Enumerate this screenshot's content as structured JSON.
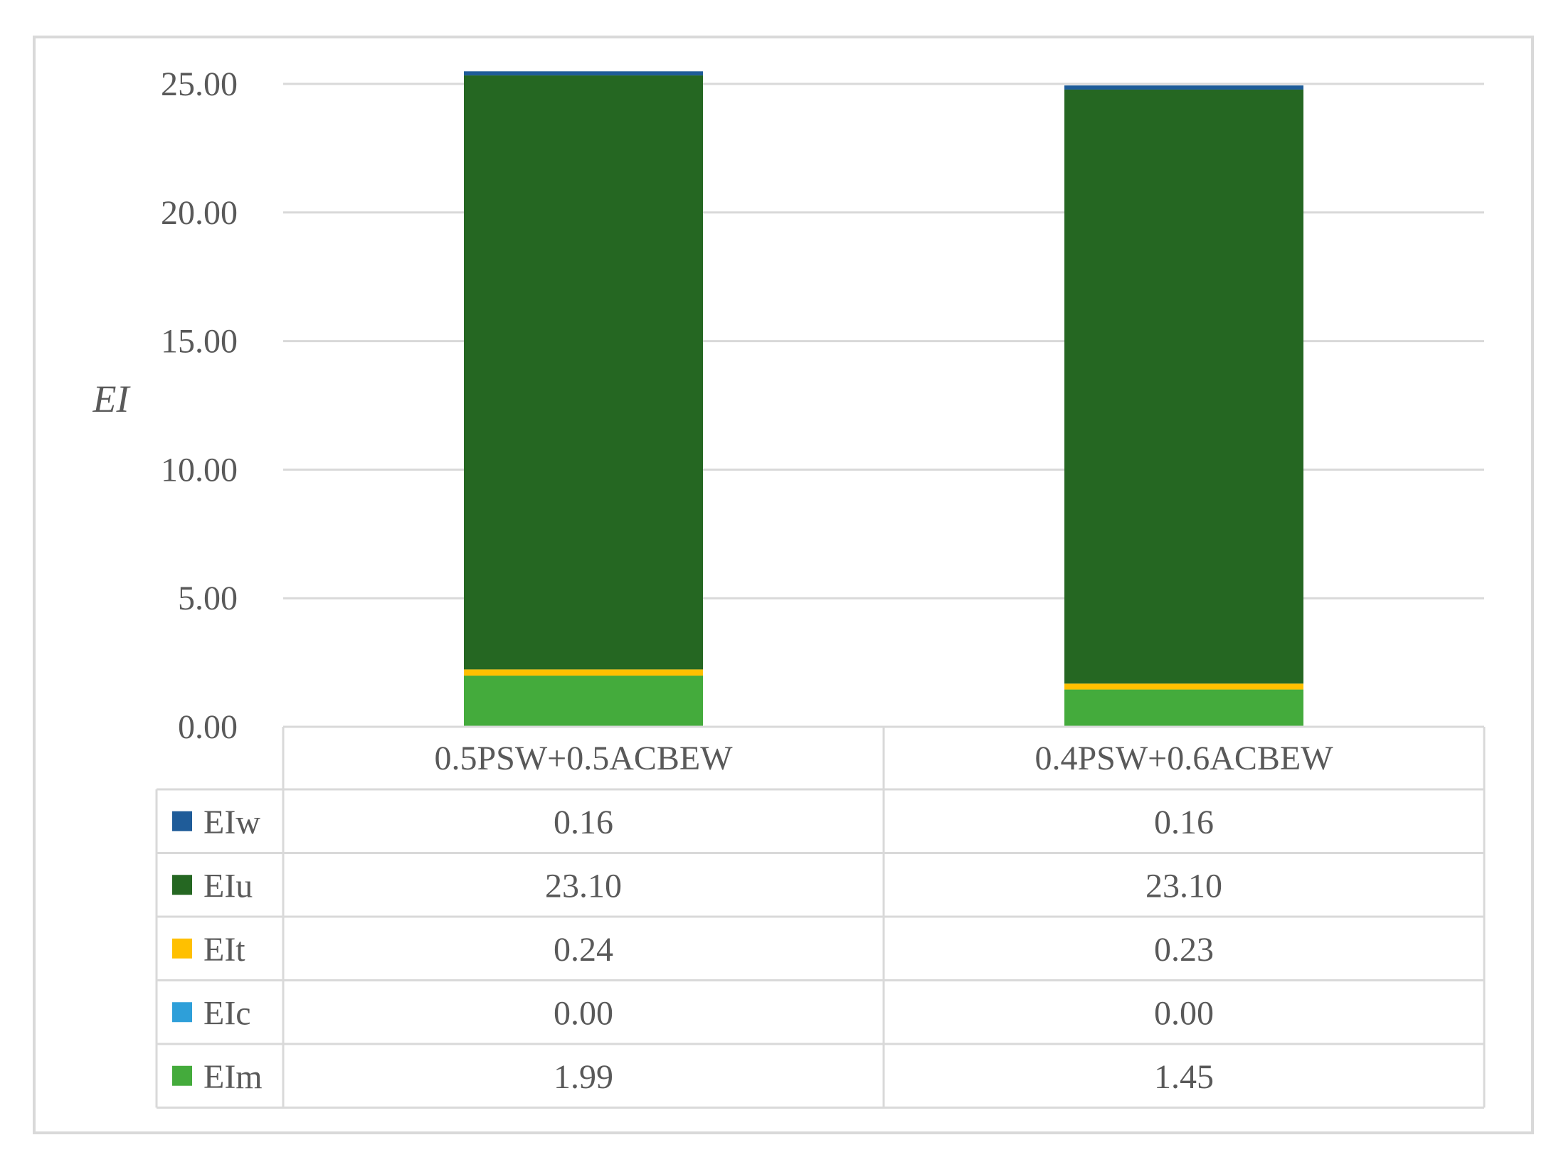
{
  "chart_data": {
    "type": "bar",
    "stacked": true,
    "ylabel": "EI",
    "ylim": [
      0,
      25
    ],
    "yticks": [
      "0.00",
      "5.00",
      "10.00",
      "15.00",
      "20.00",
      "25.00"
    ],
    "grid": true,
    "legend": "data-table",
    "categories": [
      "0.5PSW+0.5ACBEW",
      "0.4PSW+0.6ACBEW"
    ],
    "series": [
      {
        "name": "EIw",
        "color": "#1f5c99",
        "values": [
          0.16,
          0.16
        ],
        "labels": [
          "0.16",
          "0.16"
        ]
      },
      {
        "name": "EIu",
        "color": "#256722",
        "values": [
          23.1,
          23.1
        ],
        "labels": [
          "23.10",
          "23.10"
        ]
      },
      {
        "name": "EIt",
        "color": "#ffc000",
        "values": [
          0.24,
          0.23
        ],
        "labels": [
          "0.24",
          "0.23"
        ]
      },
      {
        "name": "EIc",
        "color": "#2e9fd9",
        "values": [
          0.0,
          0.0
        ],
        "labels": [
          "0.00",
          "0.00"
        ]
      },
      {
        "name": "EIm",
        "color": "#44ab3c",
        "values": [
          1.99,
          1.45
        ],
        "labels": [
          "1.99",
          "1.45"
        ]
      }
    ]
  }
}
